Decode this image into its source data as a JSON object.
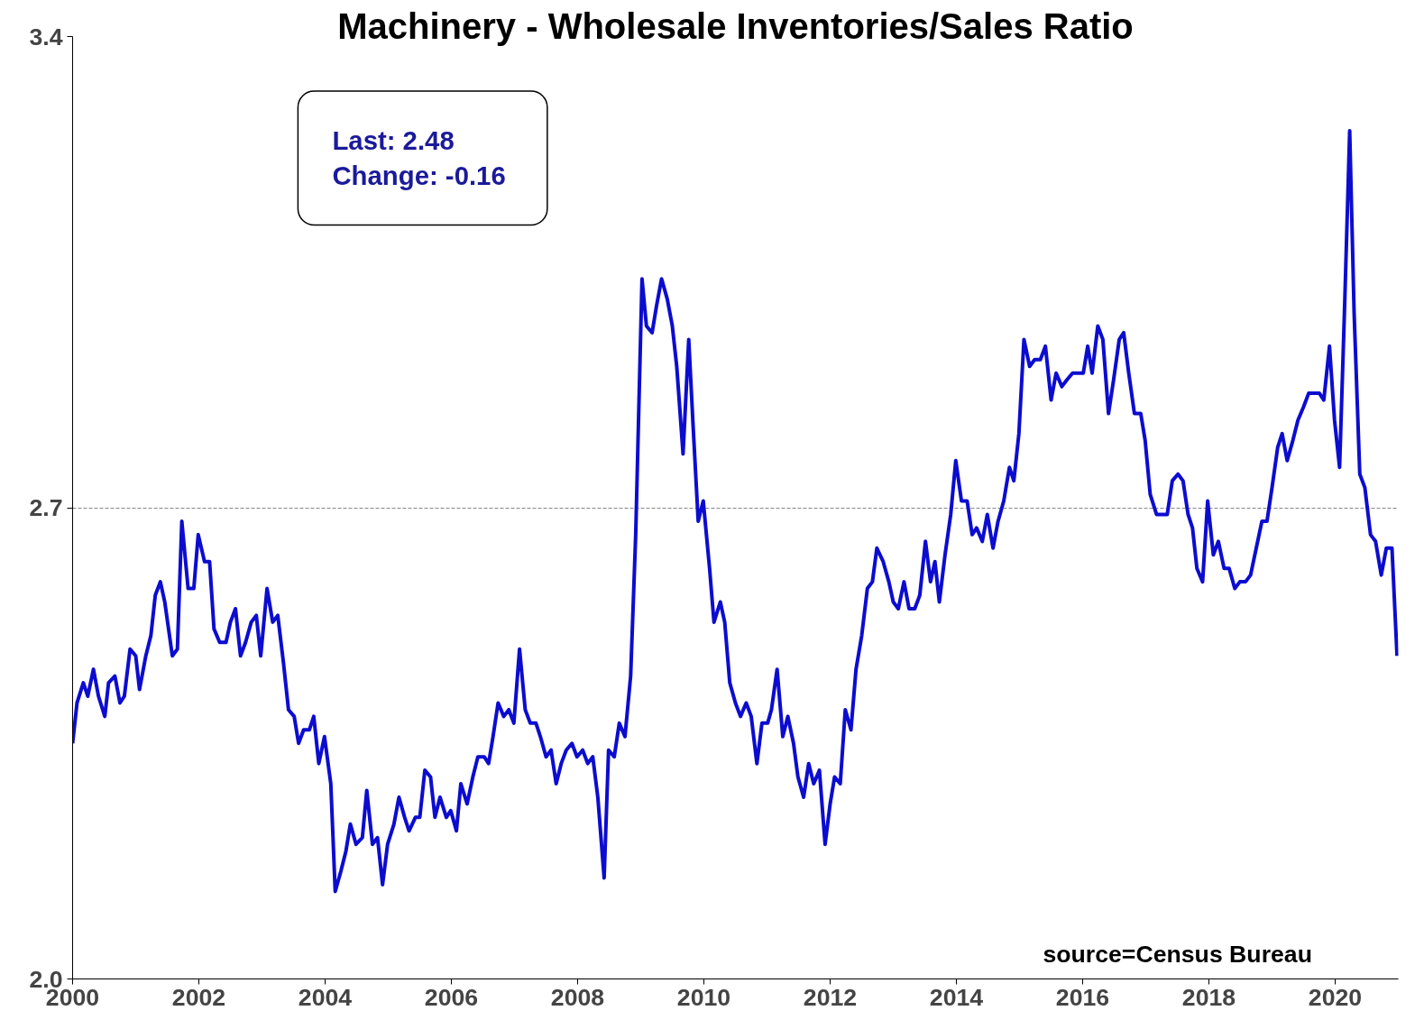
{
  "chart_data": {
    "type": "line",
    "title": "Machinery - Wholesale Inventories/Sales Ratio",
    "xlim": [
      2000,
      2021
    ],
    "xticks": [
      2000,
      2002,
      2004,
      2006,
      2008,
      2010,
      2012,
      2014,
      2016,
      2018,
      2020
    ],
    "ylim": [
      2.0,
      3.4
    ],
    "yticks": [
      {
        "value": 2.0,
        "label": "2.0"
      },
      2.7,
      3.4
    ],
    "grid": "y",
    "line_style": "solid",
    "annotations": [
      "Last:  2.48",
      "Change:  -0.16",
      "source=Census Bureau"
    ],
    "series": [
      {
        "color": "#0c0cd0",
        "x": [
          2000.0,
          2000.07,
          2000.17,
          2000.24,
          2000.33,
          2000.41,
          2000.51,
          2000.57,
          2000.67,
          2000.75,
          2000.82,
          2000.91,
          2001.0,
          2001.06,
          2001.16,
          2001.24,
          2001.31,
          2001.39,
          2001.46,
          2001.58,
          2001.66,
          2001.73,
          2001.83,
          2001.92,
          2001.99,
          2002.09,
          2002.17,
          2002.24,
          2002.33,
          2002.43,
          2002.5,
          2002.58,
          2002.66,
          2002.74,
          2002.83,
          2002.91,
          2002.98,
          2003.08,
          2003.17,
          2003.25,
          2003.34,
          2003.42,
          2003.51,
          2003.58,
          2003.66,
          2003.75,
          2003.82,
          2003.9,
          2003.99,
          2004.09,
          2004.16,
          2004.25,
          2004.33,
          2004.4,
          2004.49,
          2004.59,
          2004.66,
          2004.75,
          2004.83,
          2004.91,
          2004.99,
          2005.09,
          2005.17,
          2005.26,
          2005.33,
          2005.43,
          2005.5,
          2005.58,
          2005.67,
          2005.74,
          2005.82,
          2005.92,
          2005.99,
          2006.08,
          2006.15,
          2006.25,
          2006.34,
          2006.42,
          2006.52,
          2006.59,
          2006.66,
          2006.74,
          2006.83,
          2006.91,
          2006.99,
          2007.08,
          2007.17,
          2007.25,
          2007.34,
          2007.41,
          2007.5,
          2007.58,
          2007.66,
          2007.74,
          2007.82,
          2007.91,
          2007.99,
          2008.08,
          2008.16,
          2008.24,
          2008.32,
          2008.42,
          2008.49,
          2008.58,
          2008.66,
          2008.75,
          2008.84,
          2008.92,
          2009.02,
          2009.09,
          2009.18,
          2009.25,
          2009.33,
          2009.42,
          2009.5,
          2009.57,
          2009.67,
          2009.76,
          2009.83,
          2009.91,
          2009.99,
          2010.09,
          2010.16,
          2010.26,
          2010.33,
          2010.41,
          2010.5,
          2010.58,
          2010.67,
          2010.75,
          2010.84,
          2010.92,
          2011.01,
          2011.07,
          2011.16,
          2011.25,
          2011.33,
          2011.42,
          2011.49,
          2011.58,
          2011.66,
          2011.74,
          2011.83,
          2011.92,
          2012.0,
          2012.07,
          2012.16,
          2012.24,
          2012.33,
          2012.41,
          2012.5,
          2012.59,
          2012.67,
          2012.74,
          2012.84,
          2012.93,
          2013.0,
          2013.08,
          2013.17,
          2013.25,
          2013.34,
          2013.42,
          2013.51,
          2013.59,
          2013.66,
          2013.73,
          2013.82,
          2013.91,
          2013.99,
          2014.08,
          2014.17,
          2014.25,
          2014.32,
          2014.41,
          2014.49,
          2014.58,
          2014.66,
          2014.75,
          2014.84,
          2014.91,
          2014.99,
          2015.07,
          2015.16,
          2015.24,
          2015.33,
          2015.41,
          2015.5,
          2015.58,
          2015.67,
          2015.75,
          2015.84,
          2015.92,
          2016.01,
          2016.08,
          2016.15,
          2016.24,
          2016.32,
          2016.41,
          2016.49,
          2016.58,
          2016.65,
          2016.73,
          2016.82,
          2016.92,
          2016.99,
          2017.07,
          2017.17,
          2017.25,
          2017.34,
          2017.42,
          2017.51,
          2017.59,
          2017.67,
          2017.74,
          2017.81,
          2017.9,
          2017.98,
          2018.07,
          2018.15,
          2018.24,
          2018.32,
          2018.41,
          2018.49,
          2018.58,
          2018.66,
          2018.75,
          2018.84,
          2018.92,
          2019.0,
          2019.09,
          2019.16,
          2019.24,
          2019.33,
          2019.41,
          2019.5,
          2019.58,
          2019.67,
          2019.75,
          2019.82,
          2019.91,
          2019.99,
          2020.07,
          2020.15,
          2020.23,
          2020.3,
          2020.39,
          2020.47,
          2020.56,
          2020.64,
          2020.73,
          2020.81,
          2020.9,
          2020.98
        ],
        "values": [
          2.35,
          2.41,
          2.44,
          2.42,
          2.46,
          2.42,
          2.39,
          2.44,
          2.45,
          2.41,
          2.42,
          2.49,
          2.48,
          2.43,
          2.48,
          2.51,
          2.57,
          2.59,
          2.56,
          2.48,
          2.49,
          2.68,
          2.58,
          2.58,
          2.66,
          2.62,
          2.62,
          2.52,
          2.5,
          2.5,
          2.53,
          2.55,
          2.48,
          2.5,
          2.53,
          2.54,
          2.48,
          2.58,
          2.53,
          2.54,
          2.47,
          2.4,
          2.39,
          2.35,
          2.37,
          2.37,
          2.39,
          2.32,
          2.36,
          2.29,
          2.13,
          2.16,
          2.19,
          2.23,
          2.2,
          2.21,
          2.28,
          2.2,
          2.21,
          2.14,
          2.2,
          2.23,
          2.27,
          2.24,
          2.22,
          2.24,
          2.24,
          2.31,
          2.3,
          2.24,
          2.27,
          2.24,
          2.25,
          2.22,
          2.29,
          2.26,
          2.3,
          2.33,
          2.33,
          2.32,
          2.36,
          2.41,
          2.39,
          2.4,
          2.38,
          2.49,
          2.4,
          2.38,
          2.38,
          2.36,
          2.33,
          2.34,
          2.29,
          2.32,
          2.34,
          2.35,
          2.33,
          2.34,
          2.32,
          2.33,
          2.27,
          2.15,
          2.34,
          2.33,
          2.38,
          2.36,
          2.45,
          2.66,
          3.04,
          2.97,
          2.96,
          3.0,
          3.04,
          3.01,
          2.97,
          2.91,
          2.78,
          2.95,
          2.82,
          2.68,
          2.71,
          2.61,
          2.53,
          2.56,
          2.53,
          2.44,
          2.41,
          2.39,
          2.41,
          2.39,
          2.32,
          2.38,
          2.38,
          2.4,
          2.46,
          2.36,
          2.39,
          2.35,
          2.3,
          2.27,
          2.32,
          2.29,
          2.31,
          2.2,
          2.26,
          2.3,
          2.29,
          2.4,
          2.37,
          2.46,
          2.51,
          2.58,
          2.59,
          2.64,
          2.62,
          2.59,
          2.56,
          2.55,
          2.59,
          2.55,
          2.55,
          2.57,
          2.65,
          2.59,
          2.62,
          2.56,
          2.63,
          2.69,
          2.77,
          2.71,
          2.71,
          2.66,
          2.67,
          2.65,
          2.69,
          2.64,
          2.68,
          2.71,
          2.76,
          2.74,
          2.81,
          2.95,
          2.91,
          2.92,
          2.92,
          2.94,
          2.86,
          2.9,
          2.88,
          2.89,
          2.9,
          2.9,
          2.9,
          2.94,
          2.9,
          2.97,
          2.95,
          2.84,
          2.89,
          2.95,
          2.96,
          2.9,
          2.84,
          2.84,
          2.8,
          2.72,
          2.69,
          2.69,
          2.69,
          2.74,
          2.75,
          2.74,
          2.69,
          2.67,
          2.61,
          2.59,
          2.71,
          2.63,
          2.65,
          2.61,
          2.61,
          2.58,
          2.59,
          2.59,
          2.6,
          2.64,
          2.68,
          2.68,
          2.73,
          2.79,
          2.81,
          2.77,
          2.8,
          2.83,
          2.85,
          2.87,
          2.87,
          2.87,
          2.86,
          2.94,
          2.83,
          2.76,
          3.0,
          3.26,
          2.99,
          2.75,
          2.73,
          2.66,
          2.65,
          2.6,
          2.64,
          2.64,
          2.48
        ]
      }
    ]
  }
}
